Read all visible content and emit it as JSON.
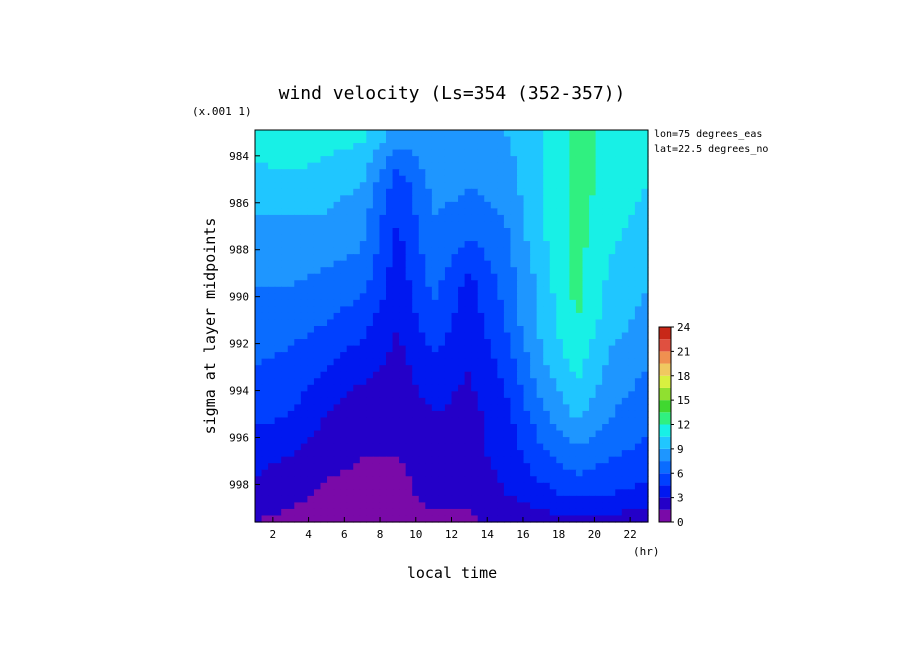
{
  "chart_data": {
    "type": "heatmap",
    "title": "wind velocity (Ls=354 (352-357))",
    "xlabel": "local time",
    "ylabel": "sigma at layer midpoints",
    "x_unit": "(hr)",
    "y_scale_note": "(x.001 1)",
    "annotations": [
      "lon=75 degrees_eas",
      "lat=22.5 degrees_no"
    ],
    "x_ticks": [
      "2",
      "4",
      "6",
      "8",
      "10",
      "12",
      "14",
      "16",
      "18",
      "20",
      "22"
    ],
    "y_ticks": [
      "984",
      "986",
      "988",
      "990",
      "992",
      "994",
      "996",
      "998"
    ],
    "xlim": [
      1,
      23
    ],
    "ylim": [
      999.6,
      982.9
    ],
    "x": [
      1,
      3,
      5,
      7,
      9,
      11,
      13,
      15,
      17,
      19,
      21,
      23
    ],
    "y": [
      982.9,
      984.1,
      985.3,
      986.6,
      988.0,
      989.5,
      991.2,
      993.0,
      995.0,
      996.8,
      998.4,
      999.6
    ],
    "z": [
      [
        11.0,
        11.5,
        11.0,
        11.0,
        8.5,
        9.0,
        8.5,
        9.0,
        10.5,
        12.5,
        11.5,
        11.0
      ],
      [
        10.5,
        11.0,
        10.5,
        10.0,
        6.5,
        8.5,
        8.0,
        8.5,
        10.5,
        12.5,
        11.5,
        11.0
      ],
      [
        10.0,
        10.0,
        9.5,
        9.0,
        5.0,
        8.0,
        7.5,
        8.0,
        10.5,
        12.5,
        11.5,
        10.5
      ],
      [
        9.0,
        9.0,
        9.0,
        8.0,
        4.5,
        7.5,
        7.0,
        7.5,
        10.5,
        12.5,
        11.0,
        10.0
      ],
      [
        8.5,
        8.5,
        8.0,
        7.5,
        4.0,
        7.0,
        5.5,
        7.0,
        10.0,
        12.5,
        10.5,
        9.5
      ],
      [
        7.5,
        7.5,
        7.0,
        6.5,
        3.5,
        6.5,
        4.0,
        6.5,
        9.5,
        12.5,
        10.0,
        9.0
      ],
      [
        7.0,
        6.5,
        6.0,
        5.0,
        3.0,
        5.5,
        3.5,
        6.0,
        9.5,
        12.0,
        9.5,
        8.5
      ],
      [
        6.0,
        5.5,
        4.5,
        3.5,
        2.5,
        4.0,
        3.0,
        5.0,
        8.5,
        11.0,
        8.5,
        7.5
      ],
      [
        5.0,
        4.5,
        3.0,
        2.0,
        2.0,
        3.0,
        2.5,
        4.0,
        7.0,
        9.5,
        7.5,
        6.5
      ],
      [
        3.5,
        3.0,
        2.0,
        1.5,
        1.5,
        2.5,
        2.5,
        3.5,
        5.5,
        7.0,
        6.0,
        5.5
      ],
      [
        2.5,
        2.0,
        1.2,
        1.0,
        1.0,
        2.0,
        2.0,
        3.0,
        4.0,
        5.0,
        4.5,
        4.0
      ],
      [
        1.5,
        1.0,
        0.8,
        0.6,
        0.8,
        1.2,
        1.2,
        1.8,
        2.2,
        2.5,
        2.3,
        2.0
      ]
    ],
    "colorbar": {
      "levels": [
        0,
        1.5,
        3,
        4.5,
        6,
        7.5,
        9,
        10.5,
        12,
        13.5,
        15,
        16.5,
        18,
        19.5,
        21,
        22.5,
        24
      ],
      "tick_labels": [
        "0",
        "3",
        "6",
        "9",
        "12",
        "15",
        "18",
        "21",
        "24"
      ],
      "colors": [
        "#7a0aa8",
        "#2400c8",
        "#0018f0",
        "#0040ff",
        "#0a6cff",
        "#1e96ff",
        "#20c6ff",
        "#18f0e6",
        "#30f080",
        "#40d830",
        "#90e030",
        "#d8f040",
        "#f0c860",
        "#f09050",
        "#e05040",
        "#c82818"
      ]
    },
    "grid": false
  }
}
